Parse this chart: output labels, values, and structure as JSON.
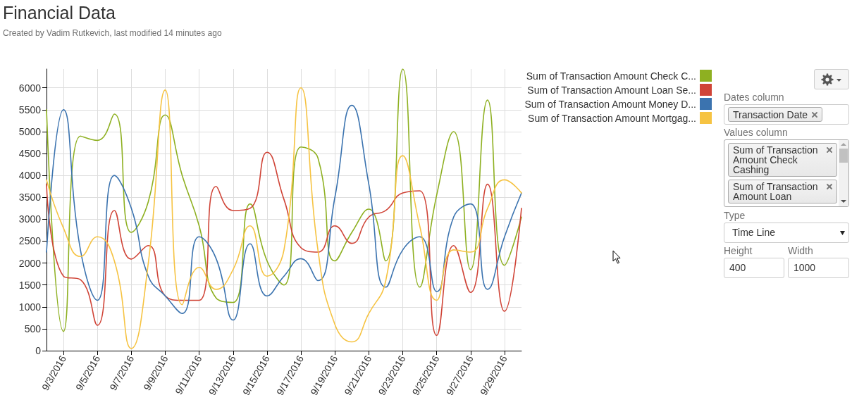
{
  "chart_data": {
    "type": "line",
    "title": "Financial Data",
    "subtitle": "Created by Vadim Rutkevich, last modified 14 minutes ago",
    "x": [
      "2016-09-02",
      "2016-09-03",
      "2016-09-04",
      "2016-09-05",
      "2016-09-06",
      "2016-09-07",
      "2016-09-08",
      "2016-09-09",
      "2016-09-10",
      "2016-09-11",
      "2016-09-12",
      "2016-09-13",
      "2016-09-14",
      "2016-09-15",
      "2016-09-16",
      "2016-09-17",
      "2016-09-18",
      "2016-09-19",
      "2016-09-20",
      "2016-09-21",
      "2016-09-22",
      "2016-09-23",
      "2016-09-24",
      "2016-09-25",
      "2016-09-26",
      "2016-09-27",
      "2016-09-28",
      "2016-09-29",
      "2016-09-30"
    ],
    "series": [
      {
        "name": "Sum of Transaction Amount Check C...",
        "color": "#8eb021",
        "values": [
          5500,
          440,
          4900,
          4800,
          5400,
          2700,
          3400,
          5380,
          4000,
          2850,
          1200,
          1100,
          3350,
          2050,
          1500,
          4650,
          4400,
          2050,
          2700,
          3230,
          2050,
          6430,
          1450,
          3550,
          5000,
          1850,
          5720,
          1950,
          3050
        ]
      },
      {
        "name": "Sum of Transaction Amount Loan Se...",
        "color": "#d04437",
        "values": [
          3800,
          1700,
          1620,
          580,
          3200,
          2090,
          2400,
          1250,
          1150,
          1150,
          3750,
          3200,
          3250,
          4530,
          3450,
          2350,
          2250,
          2850,
          2450,
          3050,
          3200,
          3600,
          3650,
          350,
          2400,
          1330,
          3800,
          900,
          3250
        ]
      },
      {
        "name": "Sum of Transaction Amount Money D...",
        "color": "#3b73af",
        "values": [
          2250,
          5500,
          2300,
          1150,
          4000,
          3250,
          1700,
          1250,
          850,
          2600,
          2100,
          700,
          2440,
          1250,
          1700,
          2100,
          1600,
          3500,
          5600,
          3800,
          1450,
          2300,
          2600,
          1350,
          3050,
          3350,
          1400,
          2600,
          3600
        ]
      },
      {
        "name": "Sum of Transaction Amount Mortgag...",
        "color": "#f6c342",
        "values": [
          3900,
          2800,
          2150,
          2600,
          2050,
          50,
          2000,
          5950,
          1050,
          1900,
          1400,
          1850,
          2850,
          1700,
          2300,
          6000,
          2300,
          600,
          200,
          850,
          1600,
          4450,
          2850,
          1150,
          2300,
          2250,
          3250,
          3900,
          3600
        ]
      }
    ],
    "xlim": [
      "2016-09-02",
      "2016-09-30"
    ],
    "xticks": [
      {
        "value": "2016-09-03",
        "label": "9/3/2016"
      },
      {
        "value": "2016-09-05",
        "label": "9/5/2016"
      },
      {
        "value": "2016-09-07",
        "label": "9/7/2016"
      },
      {
        "value": "2016-09-09",
        "label": "9/9/2016"
      },
      {
        "value": "2016-09-11",
        "label": "9/11/2016"
      },
      {
        "value": "2016-09-13",
        "label": "9/13/2016"
      },
      {
        "value": "2016-09-15",
        "label": "9/15/2016"
      },
      {
        "value": "2016-09-17",
        "label": "9/17/2016"
      },
      {
        "value": "2016-09-19",
        "label": "9/19/2016"
      },
      {
        "value": "2016-09-21",
        "label": "9/21/2016"
      },
      {
        "value": "2016-09-23",
        "label": "9/23/2016"
      },
      {
        "value": "2016-09-25",
        "label": "9/25/2016"
      },
      {
        "value": "2016-09-27",
        "label": "9/27/2016"
      },
      {
        "value": "2016-09-29",
        "label": "9/29/2016"
      }
    ],
    "ylim": [
      0,
      6430
    ],
    "yticks": [
      0,
      500,
      1000,
      1500,
      2000,
      2500,
      3000,
      3500,
      4000,
      4500,
      5000,
      5500,
      6000
    ],
    "grid": true,
    "legend": "right",
    "marker": "none",
    "line_style": "solid",
    "annotations": [
      "Dates column",
      "Transaction Date",
      "Values column",
      "Sum of Transaction Amount Check Cashing",
      "Sum of Transaction Amount Loan",
      "Type",
      "Time Line",
      "Height",
      "400",
      "Width",
      "1000"
    ]
  }
}
